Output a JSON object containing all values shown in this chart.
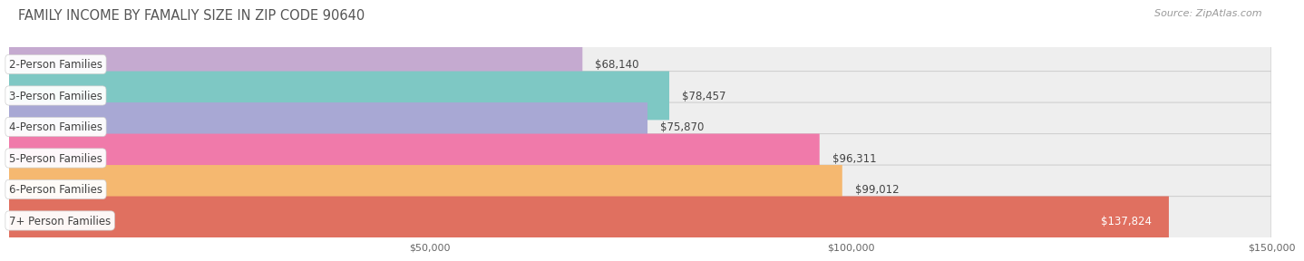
{
  "title": "FAMILY INCOME BY FAMALIY SIZE IN ZIP CODE 90640",
  "source": "Source: ZipAtlas.com",
  "categories": [
    "2-Person Families",
    "3-Person Families",
    "4-Person Families",
    "5-Person Families",
    "6-Person Families",
    "7+ Person Families"
  ],
  "values": [
    68140,
    78457,
    75870,
    96311,
    99012,
    137824
  ],
  "labels": [
    "$68,140",
    "$78,457",
    "$75,870",
    "$96,311",
    "$99,012",
    "$137,824"
  ],
  "bar_colors": [
    "#c5aad0",
    "#7ec8c4",
    "#a8a8d4",
    "#f07aaa",
    "#f5b870",
    "#e07060"
  ],
  "bar_bg_color": "#e8e8e8",
  "xlim": [
    0,
    150000
  ],
  "xticks": [
    50000,
    100000,
    150000
  ],
  "xticklabels": [
    "$50,000",
    "$100,000",
    "$150,000"
  ],
  "fig_bg": "#ffffff",
  "title_fontsize": 10.5,
  "source_fontsize": 8,
  "label_fontsize": 8.5,
  "cat_fontsize": 8.5,
  "bar_height": 0.78,
  "bar_gap": 0.22
}
